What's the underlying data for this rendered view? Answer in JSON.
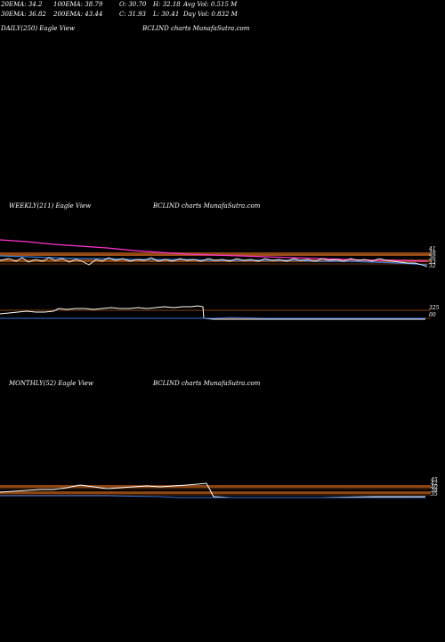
{
  "stats": {
    "ema20": "20EMA: 34.2",
    "ema100": "100EMA: 38.79",
    "open": "O: 30.70",
    "high": "H: 32.18",
    "avg_vol": "Avg Vol: 0.515  M",
    "ema30": "30EMA: 36.82",
    "ema200": "200EMA: 43.44",
    "close": "C: 31.93",
    "low": "L: 30.41",
    "day_vol": "Day Vol: 0.832  M"
  },
  "panels": {
    "daily": {
      "label": "DAILY(250) Eagle   View",
      "source": "BCLIND charts MunafaSutra.com"
    },
    "weekly": {
      "label": "WEEKLY(211) Eagle   View",
      "source": "BCLIND charts MunafaSutra.com"
    },
    "monthly": {
      "label": "MONTHLY(52) Eagle   View",
      "source": "BCLIND charts MunafaSutra.com"
    }
  },
  "colors": {
    "background": "#000000",
    "price": "#ffffff",
    "ema_short": "#3a7bd5",
    "ema_long": "#ff33cc",
    "band": "#8b4513",
    "band_line": "#d2691e",
    "volume_base": "#3a6fd8"
  },
  "chart_data": [
    {
      "type": "line",
      "title": "WEEKLY(211) Eagle   View",
      "series": [
        {
          "values": [
            42,
            41,
            40.5,
            40,
            39.5,
            39,
            38.8,
            38.5,
            38.3,
            38.1,
            38,
            37.9,
            37.8,
            37.7,
            37.6,
            37.5,
            37.4
          ]
        },
        {
          "values": [
            39,
            38.5,
            38,
            37.8,
            37.5,
            37.3,
            37.2,
            37.1,
            37,
            36.9,
            36.8,
            36.7,
            36.6,
            36.5,
            36.3,
            36.1,
            35.8
          ]
        },
        {
          "values": [
            37,
            36.5,
            36.8,
            36.2,
            36.9,
            36.4,
            36.7,
            36.3,
            36.8,
            36.2,
            36.6,
            36.5,
            36.9,
            36.4,
            36.3,
            35.5,
            34.5
          ]
        }
      ],
      "axis_labels": [
        "41",
        "38",
        "36",
        "33",
        "32"
      ],
      "volume_labels": [
        "325",
        "00"
      ]
    },
    {
      "type": "line",
      "title": "MONTHLY(52) Eagle   View",
      "axis_labels": [
        "45",
        "42",
        "40",
        "38",
        "35"
      ],
      "volume_labels": [
        "00"
      ]
    }
  ]
}
